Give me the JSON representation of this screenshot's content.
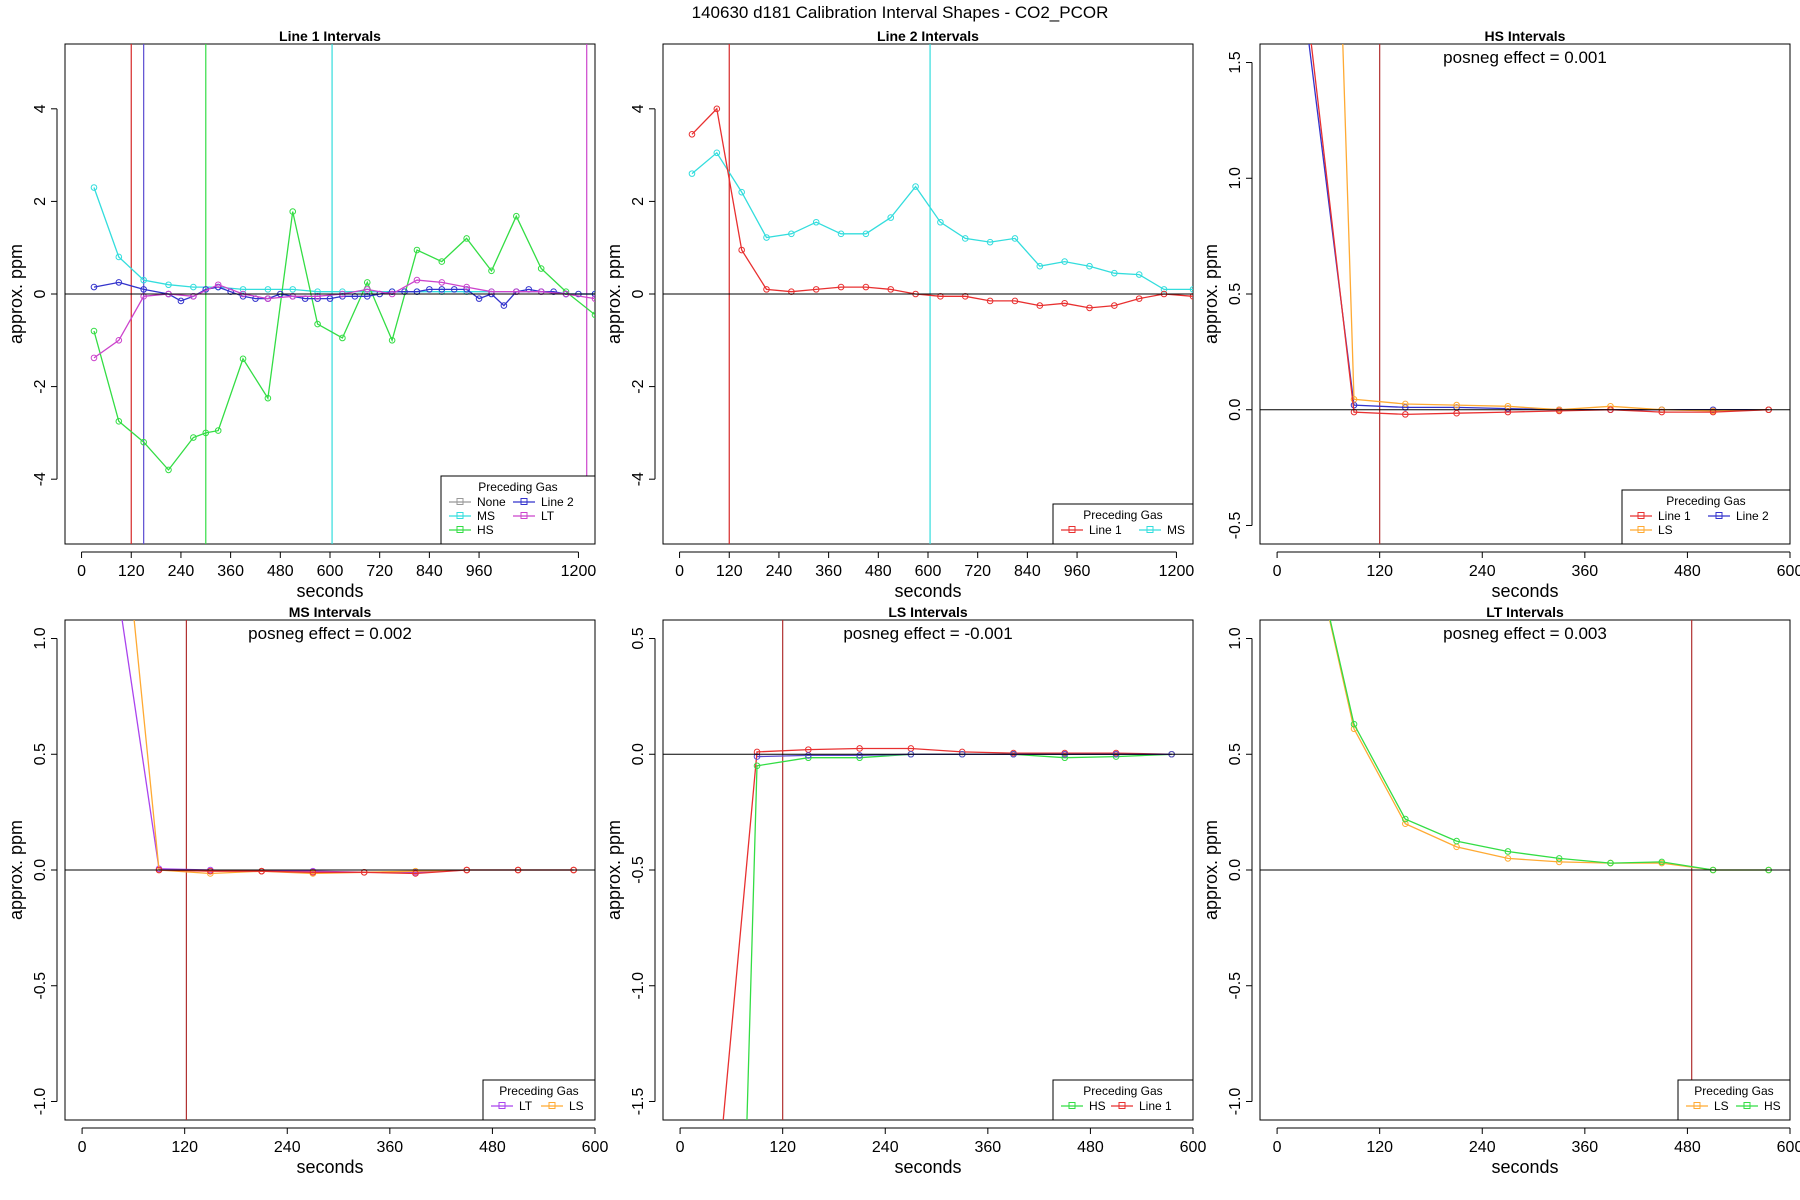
{
  "title": "140630  d181   Calibration Interval Shapes - CO2_PCOR",
  "legend_title": "Preceding Gas",
  "chart_data": [
    {
      "type": "line",
      "title": "Line 1 Intervals",
      "xlabel": "seconds",
      "ylabel": "approx. ppm",
      "xlim": [
        -40,
        1240
      ],
      "ylim": [
        -5.4,
        5.4
      ],
      "xticks": [
        0,
        120,
        240,
        360,
        480,
        600,
        720,
        840,
        960,
        1200
      ],
      "yticks": [
        -4,
        -2,
        0,
        2,
        4
      ],
      "hline": 0,
      "annotation": "",
      "vlines": [
        {
          "x": 120,
          "color": "#d62728"
        },
        {
          "x": 150,
          "color": "#5b4bd1"
        },
        {
          "x": 300,
          "color": "#33dd44"
        },
        {
          "x": 605,
          "color": "#33dddd"
        },
        {
          "x": 1220,
          "color": "#cc44cc"
        }
      ],
      "legend": {
        "position": "bottom-right",
        "columns": 2,
        "entries": [
          {
            "name": "None",
            "color": "#999999"
          },
          {
            "name": "Line 2",
            "color": "#3333cc"
          },
          {
            "name": "MS",
            "color": "#33dddd"
          },
          {
            "name": "LT",
            "color": "#cc44cc"
          },
          {
            "name": "HS",
            "color": "#33dd44"
          }
        ]
      },
      "series": [
        {
          "name": "MS",
          "color": "#33dddd",
          "x": [
            30,
            90,
            150,
            210,
            270,
            330,
            390,
            450,
            510,
            570,
            630,
            690,
            750,
            810,
            870,
            930,
            990,
            1050,
            1110,
            1170,
            1240
          ],
          "y": [
            2.3,
            0.8,
            0.3,
            0.2,
            0.15,
            0.15,
            0.1,
            0.1,
            0.1,
            0.05,
            0.05,
            0.05,
            0.05,
            0.05,
            0.05,
            0.05,
            0.05,
            0.05,
            0.05,
            0.0,
            0.0
          ]
        },
        {
          "name": "HS",
          "color": "#33dd44",
          "x": [
            30,
            90,
            150,
            210,
            270,
            300,
            330,
            390,
            450,
            510,
            570,
            630,
            690,
            750,
            810,
            870,
            930,
            990,
            1050,
            1110,
            1170,
            1240
          ],
          "y": [
            -0.8,
            -2.75,
            -3.2,
            -3.8,
            -3.1,
            -3.0,
            -2.95,
            -1.4,
            -2.25,
            1.78,
            -0.65,
            -0.95,
            0.25,
            -1.0,
            0.95,
            0.7,
            1.2,
            0.5,
            1.68,
            0.55,
            0.05,
            -0.45
          ]
        },
        {
          "name": "Line 2",
          "color": "#3333cc",
          "x": [
            30,
            90,
            150,
            210,
            240,
            270,
            300,
            330,
            360,
            390,
            420,
            450,
            480,
            510,
            540,
            570,
            600,
            630,
            660,
            690,
            720,
            750,
            780,
            810,
            840,
            870,
            900,
            930,
            960,
            990,
            1020,
            1050,
            1080,
            1110,
            1140,
            1170,
            1200,
            1240
          ],
          "y": [
            0.15,
            0.25,
            0.1,
            0.0,
            -0.15,
            -0.05,
            0.1,
            0.15,
            0.05,
            -0.05,
            -0.1,
            -0.1,
            0.0,
            -0.05,
            -0.1,
            -0.1,
            -0.1,
            -0.05,
            -0.05,
            -0.05,
            0.0,
            0.05,
            0.05,
            0.05,
            0.1,
            0.1,
            0.1,
            0.1,
            -0.1,
            0.0,
            -0.25,
            0.05,
            0.1,
            0.05,
            0.05,
            0.0,
            0.0,
            0.0
          ]
        },
        {
          "name": "LT",
          "color": "#cc44cc",
          "x": [
            30,
            90,
            150,
            210,
            270,
            330,
            390,
            450,
            510,
            570,
            630,
            690,
            750,
            810,
            870,
            930,
            990,
            1050,
            1110,
            1170,
            1240
          ],
          "y": [
            -1.38,
            -1.0,
            -0.05,
            0.0,
            -0.05,
            0.2,
            0.0,
            -0.1,
            -0.05,
            -0.05,
            0.0,
            0.1,
            0.0,
            0.3,
            0.25,
            0.15,
            0.05,
            0.05,
            0.05,
            0.0,
            -0.1
          ]
        }
      ]
    },
    {
      "type": "line",
      "title": "Line 2 Intervals",
      "xlabel": "seconds",
      "ylabel": "approx. ppm",
      "xlim": [
        -40,
        1240
      ],
      "ylim": [
        -5.4,
        5.4
      ],
      "xticks": [
        0,
        120,
        240,
        360,
        480,
        600,
        720,
        840,
        960,
        1200
      ],
      "yticks": [
        -4,
        -2,
        0,
        2,
        4
      ],
      "hline": 0,
      "annotation": "",
      "vlines": [
        {
          "x": 120,
          "color": "#d62728"
        },
        {
          "x": 605,
          "color": "#33dddd"
        }
      ],
      "legend": {
        "position": "bottom-right",
        "columns": 2,
        "entries": [
          {
            "name": "Line 1",
            "color": "#e83030"
          },
          {
            "name": "MS",
            "color": "#33dddd"
          }
        ]
      },
      "series": [
        {
          "name": "MS",
          "color": "#33dddd",
          "x": [
            30,
            90,
            150,
            210,
            270,
            330,
            390,
            450,
            510,
            570,
            630,
            690,
            750,
            810,
            870,
            930,
            990,
            1050,
            1110,
            1170,
            1240
          ],
          "y": [
            2.6,
            3.05,
            2.2,
            1.22,
            1.3,
            1.55,
            1.3,
            1.3,
            1.65,
            2.32,
            1.55,
            1.2,
            1.12,
            1.2,
            0.6,
            0.7,
            0.6,
            0.45,
            0.42,
            0.1,
            0.1
          ]
        },
        {
          "name": "Line 1",
          "color": "#e83030",
          "x": [
            30,
            90,
            150,
            210,
            270,
            330,
            390,
            450,
            510,
            570,
            630,
            690,
            750,
            810,
            870,
            930,
            990,
            1050,
            1110,
            1170,
            1240
          ],
          "y": [
            3.45,
            4.0,
            0.95,
            0.1,
            0.05,
            0.1,
            0.15,
            0.15,
            0.1,
            0.0,
            -0.05,
            -0.05,
            -0.15,
            -0.15,
            -0.25,
            -0.2,
            -0.3,
            -0.25,
            -0.1,
            0.0,
            -0.05
          ]
        }
      ]
    },
    {
      "type": "line",
      "title": "HS Intervals",
      "xlabel": "seconds",
      "ylabel": "approx. ppm",
      "xlim": [
        -20,
        600
      ],
      "ylim": [
        -0.58,
        1.58
      ],
      "xticks": [
        0,
        120,
        240,
        360,
        480,
        600
      ],
      "yticks": [
        -0.5,
        0.0,
        0.5,
        1.0,
        1.5
      ],
      "hline": 0,
      "annotation": "posneg effect = 0.001",
      "vlines": [
        {
          "x": 120,
          "color": "#b03030"
        }
      ],
      "legend": {
        "position": "bottom-right",
        "columns": 2,
        "entries": [
          {
            "name": "Line 1",
            "color": "#e83030"
          },
          {
            "name": "Line 2",
            "color": "#3333cc"
          },
          {
            "name": "LS",
            "color": "#ffaa33"
          }
        ]
      },
      "series": [
        {
          "name": "Line 2",
          "color": "#3333cc",
          "x": [
            30,
            90,
            150,
            210,
            270,
            330,
            390,
            450,
            510,
            575
          ],
          "y": [
            1.8,
            0.02,
            0.01,
            0.01,
            0.005,
            0.0,
            0.0,
            0.0,
            0.0,
            0.0
          ]
        },
        {
          "name": "LS",
          "color": "#ffaa33",
          "x": [
            30,
            75,
            90,
            150,
            210,
            270,
            330,
            390,
            450,
            510,
            575
          ],
          "y": [
            2.0,
            1.8,
            0.045,
            0.025,
            0.02,
            0.015,
            0.0,
            0.015,
            0.0,
            -0.005,
            0.0
          ]
        },
        {
          "name": "Line 1",
          "color": "#e83030",
          "x": [
            30,
            90,
            150,
            210,
            270,
            330,
            390,
            450,
            510,
            575
          ],
          "y": [
            1.9,
            -0.01,
            -0.02,
            -0.015,
            -0.01,
            -0.005,
            0.0,
            -0.01,
            -0.01,
            0.0
          ]
        }
      ]
    },
    {
      "type": "line",
      "title": "MS Intervals",
      "xlabel": "seconds",
      "ylabel": "approx. ppm",
      "xlim": [
        -20,
        600
      ],
      "ylim": [
        -1.08,
        1.08
      ],
      "xticks": [
        0,
        120,
        240,
        360,
        480,
        600
      ],
      "yticks": [
        -1.0,
        -0.5,
        0.0,
        0.5,
        1.0
      ],
      "hline": 0,
      "annotation": "posneg effect = 0.002",
      "vlines": [
        {
          "x": 122,
          "color": "#b03030"
        }
      ],
      "legend": {
        "position": "bottom-right",
        "columns": 2,
        "entries": [
          {
            "name": "LT",
            "color": "#aa44ee"
          },
          {
            "name": "LS",
            "color": "#ffaa33"
          }
        ]
      },
      "series": [
        {
          "name": "LT",
          "color": "#aa44ee",
          "x": [
            30,
            90,
            150,
            210,
            270,
            330,
            390,
            450,
            510,
            575
          ],
          "y": [
            1.5,
            0.005,
            0.0,
            -0.005,
            -0.005,
            -0.01,
            -0.01,
            0.0,
            0.0,
            0.0
          ]
        },
        {
          "name": "LS",
          "color": "#ffaa33",
          "x": [
            55,
            90,
            150,
            210,
            270,
            330,
            390,
            450,
            510,
            575
          ],
          "y": [
            1.3,
            0.0,
            -0.015,
            -0.005,
            -0.015,
            -0.01,
            -0.005,
            0.0,
            0.0,
            0.0
          ]
        },
        {
          "name": "Line 1",
          "color": "#e83030",
          "x": [
            90,
            150,
            210,
            270,
            330,
            390,
            450,
            510,
            575
          ],
          "y": [
            0.0,
            -0.005,
            -0.005,
            -0.01,
            -0.01,
            -0.015,
            0.0,
            0.0,
            0.0
          ]
        }
      ]
    },
    {
      "type": "line",
      "title": "LS Intervals",
      "xlabel": "seconds",
      "ylabel": "approx. ppm",
      "xlim": [
        -20,
        600
      ],
      "ylim": [
        -1.58,
        0.58
      ],
      "xticks": [
        0,
        120,
        240,
        360,
        480,
        600
      ],
      "yticks": [
        -1.5,
        -1.0,
        -0.5,
        0.0,
        0.5
      ],
      "hline": 0,
      "annotation": "posneg effect = -0.001",
      "vlines": [
        {
          "x": 120,
          "color": "#b03030"
        }
      ],
      "legend": {
        "position": "bottom-right",
        "columns": 2,
        "entries": [
          {
            "name": "HS",
            "color": "#33dd44"
          },
          {
            "name": "Line 1",
            "color": "#e83030"
          }
        ]
      },
      "series": [
        {
          "name": "Line 1",
          "color": "#e83030",
          "x": [
            40,
            90,
            150,
            210,
            270,
            330,
            390,
            450,
            510,
            575
          ],
          "y": [
            -2.0,
            0.01,
            0.02,
            0.025,
            0.025,
            0.01,
            0.005,
            0.005,
            0.005,
            0.0
          ]
        },
        {
          "name": "HS",
          "color": "#33dd44",
          "x": [
            75,
            90,
            150,
            210,
            270,
            330,
            390,
            450,
            510,
            575
          ],
          "y": [
            -2.0,
            -0.05,
            -0.015,
            -0.015,
            0.0,
            0.0,
            0.0,
            -0.015,
            -0.01,
            0.0
          ]
        },
        {
          "name": "LT",
          "color": "#5b4bd1",
          "x": [
            90,
            150,
            210,
            270,
            330,
            390,
            450,
            510,
            575
          ],
          "y": [
            -0.01,
            -0.005,
            -0.005,
            0.0,
            0.0,
            0.0,
            0.0,
            0.0,
            0.0
          ]
        }
      ]
    },
    {
      "type": "line",
      "title": "LT Intervals",
      "xlabel": "seconds",
      "ylabel": "approx. ppm",
      "xlim": [
        -20,
        600
      ],
      "ylim": [
        -1.08,
        1.08
      ],
      "xticks": [
        0,
        120,
        240,
        360,
        480,
        600
      ],
      "yticks": [
        -1.0,
        -0.5,
        0.0,
        0.5,
        1.0
      ],
      "hline": 0,
      "annotation": "posneg effect = 0.003",
      "vlines": [
        {
          "x": 485,
          "color": "#b03030"
        }
      ],
      "legend": {
        "position": "bottom-right",
        "columns": 2,
        "entries": [
          {
            "name": "LS",
            "color": "#ffaa33"
          },
          {
            "name": "HS",
            "color": "#33dd44"
          }
        ]
      },
      "series": [
        {
          "name": "LS",
          "color": "#ffaa33",
          "x": [
            30,
            90,
            150,
            210,
            270,
            330,
            390,
            450,
            510,
            575
          ],
          "y": [
            1.6,
            0.61,
            0.2,
            0.1,
            0.05,
            0.035,
            0.03,
            0.03,
            0.0,
            0.0
          ]
        },
        {
          "name": "HS",
          "color": "#33dd44",
          "x": [
            30,
            90,
            150,
            210,
            270,
            330,
            390,
            450,
            510,
            575
          ],
          "y": [
            1.6,
            0.63,
            0.22,
            0.125,
            0.08,
            0.05,
            0.03,
            0.035,
            0.0,
            0.0
          ]
        }
      ]
    }
  ]
}
